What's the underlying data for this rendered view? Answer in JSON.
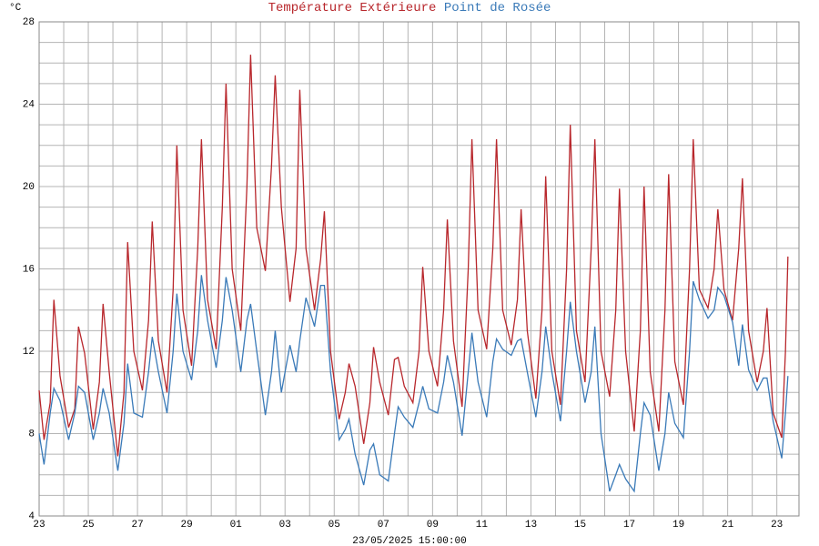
{
  "chart_data": {
    "type": "line",
    "y_unit": "°C",
    "footer": "23/05/2025 15:00:00",
    "xlim": [
      0,
      30.9
    ],
    "ylim": [
      4,
      28
    ],
    "xticks": [
      {
        "value": 0,
        "label": "23"
      },
      {
        "value": 2,
        "label": "25"
      },
      {
        "value": 4,
        "label": "27"
      },
      {
        "value": 6,
        "label": "29"
      },
      {
        "value": 8,
        "label": "01"
      },
      {
        "value": 10,
        "label": "03"
      },
      {
        "value": 12,
        "label": "05"
      },
      {
        "value": 14,
        "label": "07"
      },
      {
        "value": 16,
        "label": "09"
      },
      {
        "value": 18,
        "label": "11"
      },
      {
        "value": 20,
        "label": "13"
      },
      {
        "value": 22,
        "label": "15"
      },
      {
        "value": 24,
        "label": "17"
      },
      {
        "value": 26,
        "label": "19"
      },
      {
        "value": 28,
        "label": "21"
      },
      {
        "value": 30,
        "label": "23"
      }
    ],
    "yticks": [
      4,
      8,
      12,
      16,
      20,
      24,
      28
    ],
    "xgrid": [
      1,
      3,
      5,
      7,
      9,
      11,
      13,
      15,
      17,
      19,
      21,
      23,
      25,
      27,
      29
    ],
    "ygrid": [
      5,
      6,
      7,
      9,
      10,
      11,
      13,
      14,
      15,
      17,
      18,
      19,
      21,
      22,
      23,
      25,
      26,
      27
    ],
    "grid": true,
    "x": [
      0,
      0.2,
      0.45,
      0.6,
      0.85,
      1.2,
      1.45,
      1.6,
      1.85,
      2.2,
      2.45,
      2.6,
      2.85,
      3.2,
      3.45,
      3.6,
      3.85,
      4.2,
      4.45,
      4.6,
      4.85,
      5.2,
      5.45,
      5.6,
      5.85,
      6.2,
      6.45,
      6.6,
      6.85,
      7.2,
      7.45,
      7.6,
      7.85,
      8.2,
      8.45,
      8.6,
      8.85,
      9.2,
      9.45,
      9.6,
      9.85,
      10.2,
      10.45,
      10.6,
      10.85,
      11.2,
      11.45,
      11.6,
      11.85,
      12.2,
      12.45,
      12.6,
      12.85,
      13.2,
      13.45,
      13.6,
      13.85,
      14.2,
      14.45,
      14.6,
      14.85,
      15.2,
      15.45,
      15.6,
      15.85,
      16.2,
      16.45,
      16.6,
      16.85,
      17.2,
      17.45,
      17.6,
      17.85,
      18.2,
      18.45,
      18.6,
      18.85,
      19.2,
      19.45,
      19.6,
      19.85,
      20.2,
      20.45,
      20.6,
      20.85,
      21.2,
      21.45,
      21.6,
      21.85,
      22.2,
      22.45,
      22.6,
      22.85,
      23.2,
      23.45,
      23.6,
      23.85,
      24.2,
      24.45,
      24.6,
      24.85,
      25.2,
      25.45,
      25.6,
      25.85,
      26.2,
      26.45,
      26.6,
      26.85,
      27.2,
      27.45,
      27.6,
      27.85,
      28.2,
      28.45,
      28.6,
      28.85,
      29.2,
      29.45,
      29.6,
      29.85,
      30.2,
      30.35,
      30.45
    ],
    "series": [
      {
        "name": "Température Extérieure",
        "color": "#b8272c",
        "values": [
          10.1,
          7.7,
          9.5,
          14.5,
          10.8,
          8.3,
          9.2,
          13.2,
          11.9,
          8.2,
          10.5,
          14.3,
          11.0,
          6.9,
          10.0,
          17.3,
          12.0,
          10.1,
          13.5,
          18.3,
          12.5,
          10.0,
          15.0,
          22.0,
          14.0,
          11.3,
          17.0,
          22.3,
          14.5,
          12.1,
          19.0,
          25.0,
          16.0,
          13.0,
          20.0,
          26.4,
          18.0,
          15.9,
          21.0,
          25.4,
          19.0,
          14.4,
          17.0,
          24.7,
          17.0,
          14.0,
          16.5,
          18.8,
          12.0,
          8.7,
          10.0,
          11.4,
          10.3,
          7.5,
          9.5,
          12.2,
          10.5,
          8.9,
          11.6,
          11.7,
          10.3,
          9.5,
          12.0,
          16.1,
          12.0,
          10.3,
          14.0,
          18.4,
          12.5,
          9.3,
          16.0,
          22.3,
          14.0,
          12.1,
          17.0,
          22.3,
          14.0,
          12.3,
          14.5,
          18.9,
          13.0,
          9.7,
          14.0,
          20.5,
          12.0,
          9.4,
          16.0,
          23.0,
          13.0,
          10.5,
          17.0,
          22.3,
          12.0,
          9.8,
          14.0,
          19.9,
          12.0,
          8.1,
          13.0,
          20.0,
          11.0,
          8.1,
          14.0,
          20.6,
          11.5,
          9.4,
          16.0,
          22.3,
          15.0,
          14.1,
          16.0,
          18.9,
          15.0,
          13.5,
          17.0,
          20.4,
          13.0,
          10.5,
          12.0,
          14.1,
          9.0,
          7.8,
          12.0,
          16.6
        ]
      },
      {
        "name": "Point de Rosée",
        "color": "#3a7ab8",
        "values": [
          8.0,
          6.5,
          9.0,
          10.2,
          9.6,
          7.7,
          9.0,
          10.3,
          10.0,
          7.7,
          9.0,
          10.2,
          9.0,
          6.2,
          8.5,
          11.4,
          9.0,
          8.8,
          11.0,
          12.7,
          11.0,
          9.0,
          12.0,
          14.8,
          12.0,
          10.6,
          13.0,
          15.7,
          13.5,
          11.2,
          13.5,
          15.6,
          14.0,
          11.0,
          13.5,
          14.3,
          12.0,
          8.9,
          11.0,
          13.0,
          10.0,
          12.3,
          11.0,
          12.5,
          14.6,
          13.2,
          15.2,
          15.2,
          11.0,
          7.7,
          8.2,
          8.7,
          7.0,
          5.5,
          7.2,
          7.5,
          6.0,
          5.7,
          8.0,
          9.3,
          8.8,
          8.3,
          9.5,
          10.3,
          9.2,
          9.0,
          10.5,
          11.8,
          10.5,
          7.9,
          11.0,
          12.9,
          10.5,
          8.8,
          11.5,
          12.6,
          12.1,
          11.8,
          12.5,
          12.6,
          11.0,
          8.8,
          11.0,
          13.2,
          11.0,
          8.6,
          12.0,
          14.4,
          12.0,
          9.5,
          11.0,
          13.2,
          8.0,
          5.2,
          6.0,
          6.5,
          5.8,
          5.2,
          8.0,
          9.5,
          8.9,
          6.2,
          8.0,
          10.0,
          8.5,
          7.8,
          12.0,
          15.4,
          14.5,
          13.6,
          14.0,
          15.1,
          14.7,
          13.4,
          11.3,
          13.3,
          11.1,
          10.1,
          10.7,
          10.7,
          8.6,
          6.8,
          9.0,
          10.8
        ]
      }
    ]
  }
}
